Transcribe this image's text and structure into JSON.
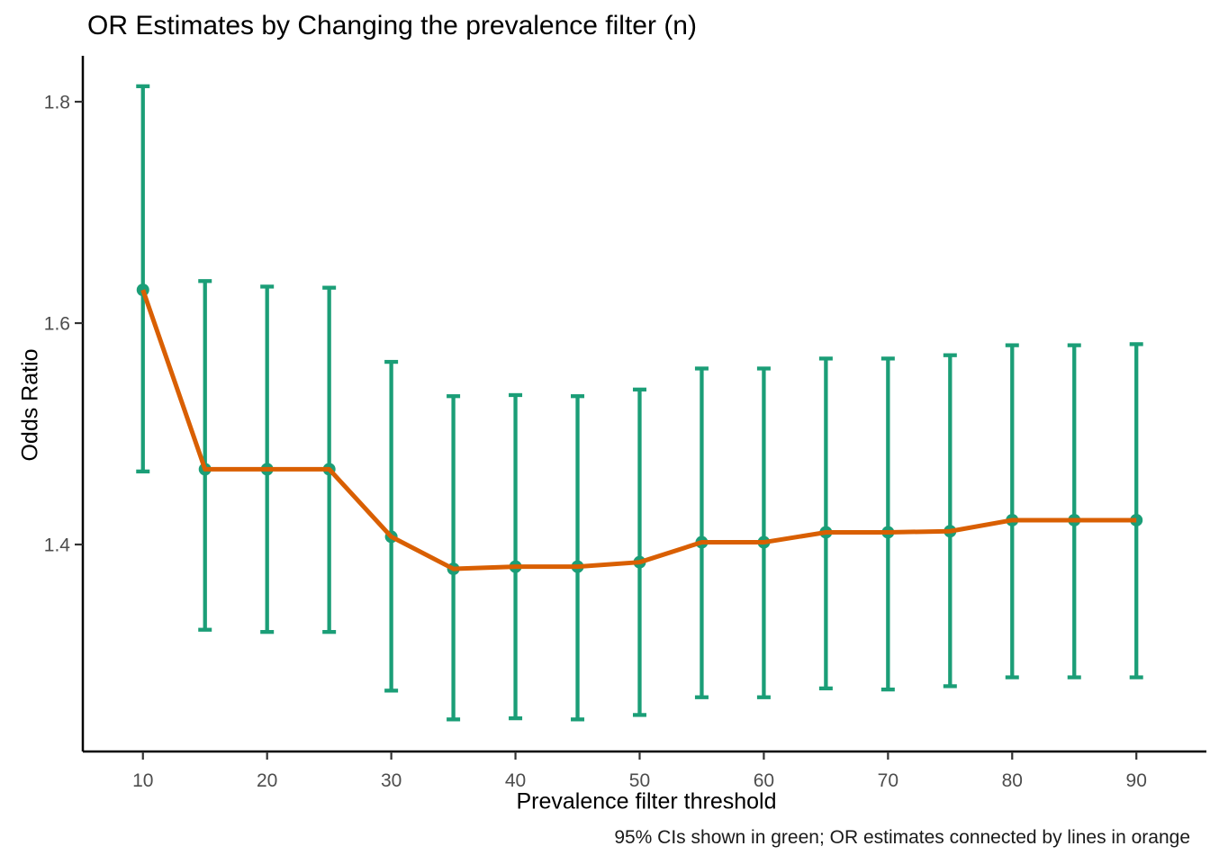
{
  "figure": {
    "title": "OR Estimates by Changing the prevalence filter (n)",
    "x_axis_label": "Prevalence filter threshold",
    "y_axis_label": "Odds Ratio",
    "caption": "95% CIs shown in green; OR estimates connected by lines in orange"
  },
  "chart_data": {
    "type": "line",
    "title": "OR Estimates by Changing the prevalence filter (n)",
    "xlabel": "Prevalence filter threshold",
    "ylabel": "Odds Ratio",
    "caption": "95% CIs shown in green; OR estimates connected by lines in orange",
    "x": [
      10,
      15,
      20,
      25,
      30,
      35,
      40,
      45,
      50,
      55,
      60,
      65,
      70,
      75,
      80,
      85,
      90
    ],
    "series": [
      {
        "name": "OR estimate",
        "values": [
          1.63,
          1.468,
          1.468,
          1.468,
          1.407,
          1.378,
          1.38,
          1.38,
          1.384,
          1.402,
          1.402,
          1.411,
          1.411,
          1.412,
          1.422,
          1.422,
          1.422
        ],
        "ci_lower": [
          1.466,
          1.323,
          1.321,
          1.321,
          1.268,
          1.242,
          1.243,
          1.242,
          1.246,
          1.262,
          1.262,
          1.27,
          1.269,
          1.272,
          1.28,
          1.28,
          1.28
        ],
        "ci_upper": [
          1.814,
          1.638,
          1.633,
          1.632,
          1.565,
          1.534,
          1.535,
          1.534,
          1.54,
          1.559,
          1.559,
          1.568,
          1.568,
          1.571,
          1.58,
          1.58,
          1.581
        ]
      }
    ],
    "ci_level": "95%",
    "x_ticks": [
      10,
      20,
      30,
      40,
      50,
      60,
      70,
      80,
      90
    ],
    "y_ticks": [
      1.4,
      1.6,
      1.8
    ],
    "xlim": [
      5.16,
      95.64
    ],
    "ylim": [
      1.213,
      1.8415
    ],
    "grid": false,
    "legend": "none",
    "colors": {
      "ci": "#1B9E77",
      "line": "#D95F02",
      "point": "#1B9E77",
      "axis": "#000000",
      "tick": "#333333",
      "tick_label": "#4D4D4D",
      "background": "#FFFFFF"
    }
  }
}
